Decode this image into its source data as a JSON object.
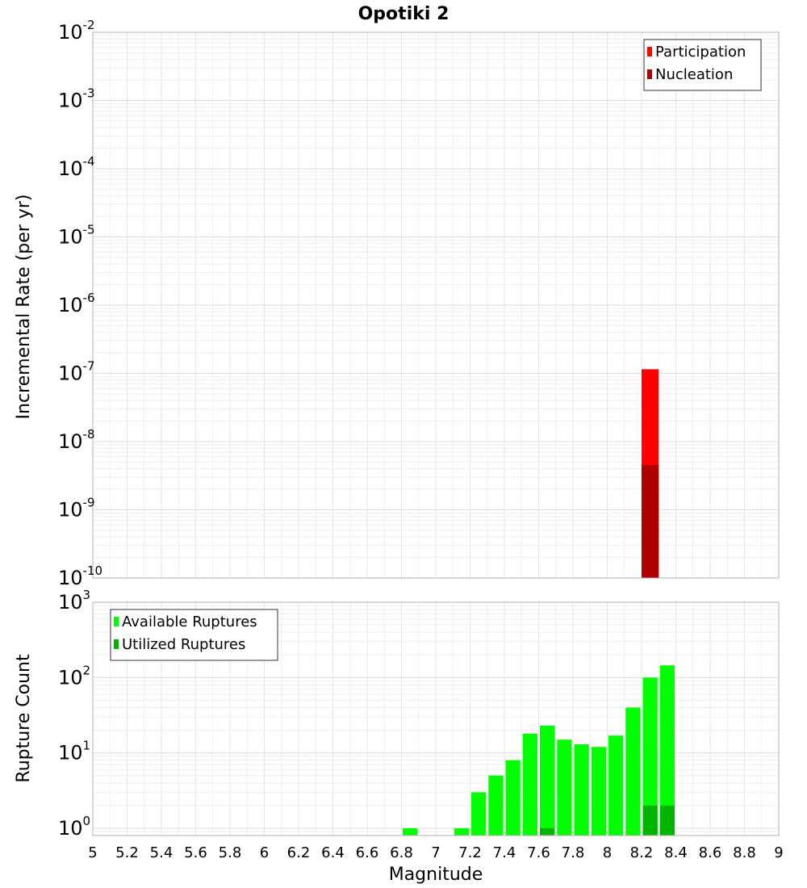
{
  "chart_data": {
    "title": "Opotiki 2",
    "xlabel": "Magnitude",
    "xlim": [
      5,
      9
    ],
    "x_ticks": [
      "5",
      "5.2",
      "5.4",
      "5.6",
      "5.8",
      "6",
      "6.2",
      "6.4",
      "6.6",
      "6.8",
      "7",
      "7.2",
      "7.4",
      "7.6",
      "7.8",
      "8",
      "8.2",
      "8.4",
      "8.6",
      "8.8",
      "9"
    ],
    "bin_width": 0.1,
    "panels": [
      {
        "type": "bar",
        "ylabel": "Incremental Rate (per yr)",
        "yscale": "log",
        "ylim": [
          1e-10,
          0.01
        ],
        "y_tick_exponents": [
          "-10",
          "-9",
          "-8",
          "-7",
          "-6",
          "-5",
          "-4",
          "-3",
          "-2"
        ],
        "legend_position": "top-right",
        "grid": true,
        "series": [
          {
            "name": "Participation",
            "color": "#ff0000",
            "points": [
              {
                "x": 8.25,
                "y": 1.15e-07
              }
            ]
          },
          {
            "name": "Nucleation",
            "color": "#b00000",
            "points": [
              {
                "x": 8.25,
                "y": 4.5e-09
              }
            ]
          }
        ]
      },
      {
        "type": "bar",
        "ylabel": "Rupture Count",
        "yscale": "log",
        "ylim": [
          0.8,
          1000
        ],
        "y_tick_exponents": [
          "0",
          "1",
          "2",
          "3"
        ],
        "legend_position": "top-left",
        "grid": true,
        "series": [
          {
            "name": "Available Ruptures",
            "color": "#00ff00",
            "points": [
              {
                "x": 6.85,
                "y": 1
              },
              {
                "x": 7.15,
                "y": 1
              },
              {
                "x": 7.25,
                "y": 3
              },
              {
                "x": 7.35,
                "y": 5
              },
              {
                "x": 7.45,
                "y": 8
              },
              {
                "x": 7.55,
                "y": 18
              },
              {
                "x": 7.65,
                "y": 23
              },
              {
                "x": 7.75,
                "y": 15
              },
              {
                "x": 7.85,
                "y": 13
              },
              {
                "x": 7.95,
                "y": 12
              },
              {
                "x": 8.05,
                "y": 17
              },
              {
                "x": 8.15,
                "y": 40
              },
              {
                "x": 8.25,
                "y": 100
              },
              {
                "x": 8.35,
                "y": 145
              }
            ]
          },
          {
            "name": "Utilized Ruptures",
            "color": "#00b400",
            "points": [
              {
                "x": 7.65,
                "y": 1
              },
              {
                "x": 8.25,
                "y": 2
              },
              {
                "x": 8.35,
                "y": 2
              }
            ]
          }
        ]
      }
    ]
  }
}
